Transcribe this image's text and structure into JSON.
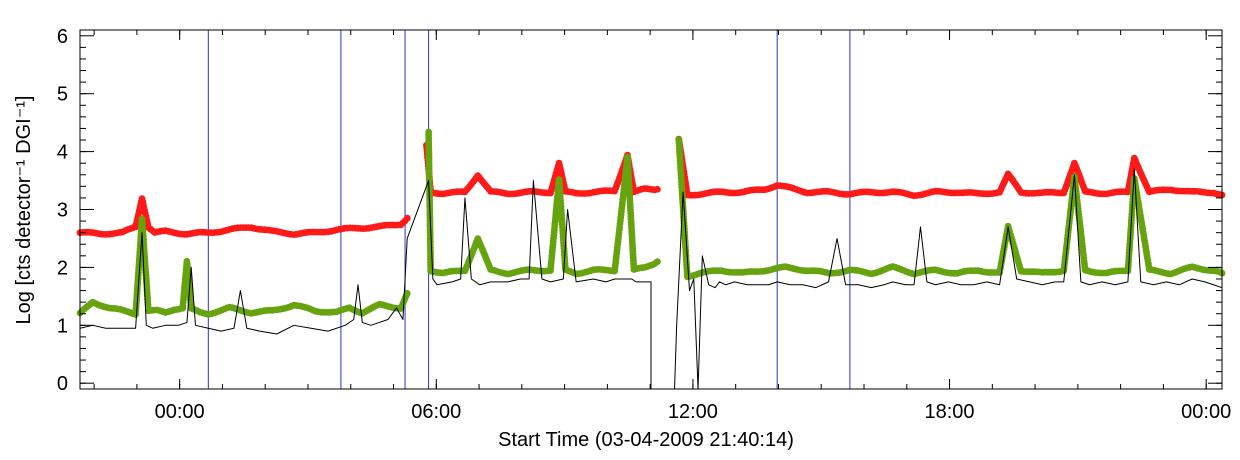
{
  "chart_data": {
    "type": "line",
    "xlabel": "Start Time (03-04-2009 21:40:14)",
    "ylabel": "Log [cts detector⁻¹ DGI⁻¹]",
    "x_unit": "hours since 03-04-2009 21:40:14",
    "xlim": [
      0.0,
      26.7
    ],
    "ylim": [
      -0.1,
      6.1
    ],
    "xticks": [
      {
        "x": 2.33,
        "label": "00:00"
      },
      {
        "x": 8.33,
        "label": "06:00"
      },
      {
        "x": 14.33,
        "label": "12:00"
      },
      {
        "x": 20.33,
        "label": "18:00"
      },
      {
        "x": 26.33,
        "label": "00:00"
      }
    ],
    "yticks": [
      {
        "y": 0,
        "label": "0"
      },
      {
        "y": 1,
        "label": "1"
      },
      {
        "y": 2,
        "label": "2"
      },
      {
        "y": 3,
        "label": "3"
      },
      {
        "y": 4,
        "label": "4"
      },
      {
        "y": 5,
        "label": "5"
      },
      {
        "y": 6,
        "label": "6"
      }
    ],
    "vertical_lines_x": [
      3.0,
      6.1,
      7.6,
      8.15,
      16.3,
      18.0
    ],
    "vertical_line_color": "#2b35c8",
    "series": [
      {
        "color": "#ff1a1a",
        "marker": "dot",
        "segments": [
          {
            "x": [
              0.0,
              0.5,
              1.0,
              1.3,
              1.45,
              1.6,
              1.75,
              2.0,
              2.5,
              3.0,
              3.5,
              4.0,
              4.5,
              5.0,
              5.5,
              6.0,
              6.5,
              7.0,
              7.5,
              7.65
            ],
            "y": [
              2.6,
              2.58,
              2.6,
              2.7,
              3.2,
              2.7,
              2.6,
              2.62,
              2.58,
              2.6,
              2.65,
              2.7,
              2.62,
              2.58,
              2.6,
              2.65,
              2.68,
              2.7,
              2.75,
              2.85
            ]
          },
          {
            "x": [
              8.1,
              8.2,
              8.5,
              9.0,
              9.3,
              9.6,
              10.0,
              10.5,
              11.0,
              11.2,
              11.35,
              11.6,
              12.0,
              12.5,
              12.8,
              12.95,
              13.2,
              13.5
            ],
            "y": [
              4.1,
              3.3,
              3.28,
              3.3,
              3.6,
              3.3,
              3.28,
              3.3,
              3.3,
              3.8,
              3.3,
              3.28,
              3.3,
              3.32,
              3.95,
              3.3,
              3.35,
              3.35
            ]
          },
          {
            "x": [
              14.0,
              14.2,
              14.5,
              15.0,
              15.5,
              16.0,
              16.3,
              17.0,
              17.5,
              18.0,
              18.5,
              19.0,
              19.5,
              20.0,
              20.5,
              21.0,
              21.5,
              21.7,
              22.0,
              22.5,
              23.0,
              23.25,
              23.5,
              24.0,
              24.5,
              24.65,
              25.0,
              25.5,
              26.0,
              26.5,
              26.7
            ],
            "y": [
              4.2,
              3.25,
              3.27,
              3.3,
              3.3,
              3.35,
              3.42,
              3.3,
              3.3,
              3.27,
              3.3,
              3.3,
              3.25,
              3.3,
              3.3,
              3.27,
              3.3,
              3.6,
              3.3,
              3.28,
              3.3,
              3.8,
              3.3,
              3.28,
              3.3,
              3.9,
              3.3,
              3.35,
              3.3,
              3.3,
              3.25
            ]
          }
        ]
      },
      {
        "color": "#66a30e",
        "marker": "dot",
        "segments": [
          {
            "x": [
              0.0,
              0.3,
              0.7,
              1.0,
              1.3,
              1.45,
              1.6,
              1.8,
              2.0,
              2.2,
              2.4,
              2.5,
              2.6,
              2.8,
              3.0,
              3.5,
              4.0,
              4.5,
              5.0,
              5.5,
              6.0,
              6.3,
              6.6,
              7.0,
              7.5,
              7.65
            ],
            "y": [
              1.2,
              1.4,
              1.3,
              1.25,
              1.2,
              2.85,
              1.25,
              1.25,
              1.22,
              1.28,
              1.3,
              2.1,
              1.28,
              1.22,
              1.2,
              1.3,
              1.22,
              1.25,
              1.35,
              1.25,
              1.22,
              1.3,
              1.22,
              1.35,
              1.3,
              1.55
            ]
          },
          {
            "x": [
              8.15,
              8.2,
              8.5,
              9.0,
              9.3,
              9.6,
              10.0,
              10.5,
              11.0,
              11.2,
              11.35,
              11.6,
              12.0,
              12.5,
              12.8,
              12.95,
              13.2,
              13.5
            ],
            "y": [
              4.35,
              1.95,
              1.9,
              1.95,
              2.5,
              1.95,
              1.9,
              1.95,
              1.95,
              3.5,
              1.95,
              1.9,
              1.95,
              1.95,
              3.9,
              1.95,
              2.0,
              2.1
            ]
          },
          {
            "x": [
              14.0,
              14.2,
              14.5,
              15.0,
              15.5,
              16.0,
              16.5,
              17.0,
              17.5,
              18.0,
              18.5,
              19.0,
              19.5,
              20.0,
              20.5,
              21.0,
              21.5,
              21.7,
              22.0,
              22.5,
              23.0,
              23.25,
              23.5,
              24.0,
              24.5,
              24.65,
              25.0,
              25.5,
              26.0,
              26.5,
              26.7
            ],
            "y": [
              4.2,
              1.85,
              1.9,
              1.95,
              1.9,
              1.95,
              2.0,
              1.95,
              1.9,
              1.95,
              1.9,
              2.0,
              1.9,
              1.95,
              1.9,
              1.95,
              1.9,
              2.7,
              1.95,
              1.9,
              1.95,
              3.55,
              1.95,
              1.9,
              1.95,
              3.55,
              1.95,
              1.9,
              2.0,
              1.95,
              1.9
            ]
          }
        ]
      },
      {
        "color": "#000000",
        "marker": "line",
        "segments": [
          {
            "x": [
              0.0,
              0.3,
              0.6,
              1.0,
              1.3,
              1.45,
              1.55,
              1.7,
              2.0,
              2.3,
              2.5,
              2.6,
              2.7,
              3.0,
              3.3,
              3.6,
              3.75,
              3.9,
              4.2,
              4.6,
              5.0,
              5.4,
              5.8,
              6.2,
              6.4,
              6.5,
              6.6,
              6.8,
              7.2,
              7.4,
              7.55,
              7.65,
              8.15,
              8.25,
              8.35,
              8.7,
              8.9,
              9.0,
              9.15,
              9.35,
              9.6,
              10.0,
              10.3,
              10.5,
              10.6,
              10.8,
              11.0,
              11.3,
              11.4,
              11.6,
              12.0,
              12.3,
              12.5,
              12.7,
              12.9,
              13.0,
              13.2,
              13.35,
              13.35,
              13.9,
              13.95,
              14.1,
              14.25,
              14.35,
              14.45,
              14.55,
              14.7,
              14.85,
              14.95,
              15.1,
              15.3,
              15.6,
              15.9,
              16.1,
              16.3,
              16.6,
              16.9,
              17.2,
              17.5,
              17.7,
              17.9,
              18.2,
              18.5,
              18.8,
              19.0,
              19.3,
              19.5,
              19.65,
              19.8,
              20.0,
              20.3,
              20.6,
              20.9,
              21.2,
              21.5,
              21.7,
              21.9,
              22.2,
              22.5,
              22.8,
              23.0,
              23.25,
              23.4,
              23.6,
              23.9,
              24.2,
              24.5,
              24.65,
              24.8,
              25.1,
              25.4,
              25.7,
              26.0,
              26.3,
              26.5,
              26.7
            ],
            "y": [
              0.95,
              1.0,
              0.95,
              0.95,
              0.95,
              2.6,
              1.0,
              0.95,
              1.0,
              1.0,
              1.05,
              2.0,
              1.0,
              0.95,
              0.9,
              0.95,
              1.6,
              0.95,
              0.9,
              0.85,
              1.0,
              0.95,
              0.9,
              1.0,
              1.1,
              1.7,
              1.05,
              1.0,
              1.1,
              1.3,
              1.1,
              2.5,
              3.5,
              1.8,
              1.7,
              1.75,
              1.8,
              3.2,
              1.8,
              1.7,
              1.75,
              1.75,
              1.8,
              1.8,
              3.5,
              1.8,
              1.75,
              1.8,
              3.0,
              1.75,
              1.8,
              1.75,
              1.8,
              1.8,
              1.8,
              1.75,
              1.75,
              1.75,
              -0.1,
              -0.1,
              1.0,
              3.3,
              1.6,
              1.8,
              -0.1,
              2.2,
              1.7,
              1.65,
              1.75,
              1.7,
              1.75,
              1.7,
              1.7,
              1.7,
              1.75,
              1.7,
              1.7,
              1.65,
              1.75,
              2.5,
              1.7,
              1.7,
              1.65,
              1.7,
              1.75,
              1.7,
              1.7,
              2.7,
              1.75,
              1.7,
              1.75,
              1.7,
              1.7,
              1.75,
              1.7,
              2.7,
              1.8,
              1.75,
              1.7,
              1.75,
              1.75,
              3.6,
              1.75,
              1.7,
              1.75,
              1.7,
              1.75,
              3.7,
              1.75,
              1.7,
              1.75,
              1.7,
              1.8,
              1.75,
              1.7,
              1.65
            ]
          }
        ]
      }
    ]
  }
}
